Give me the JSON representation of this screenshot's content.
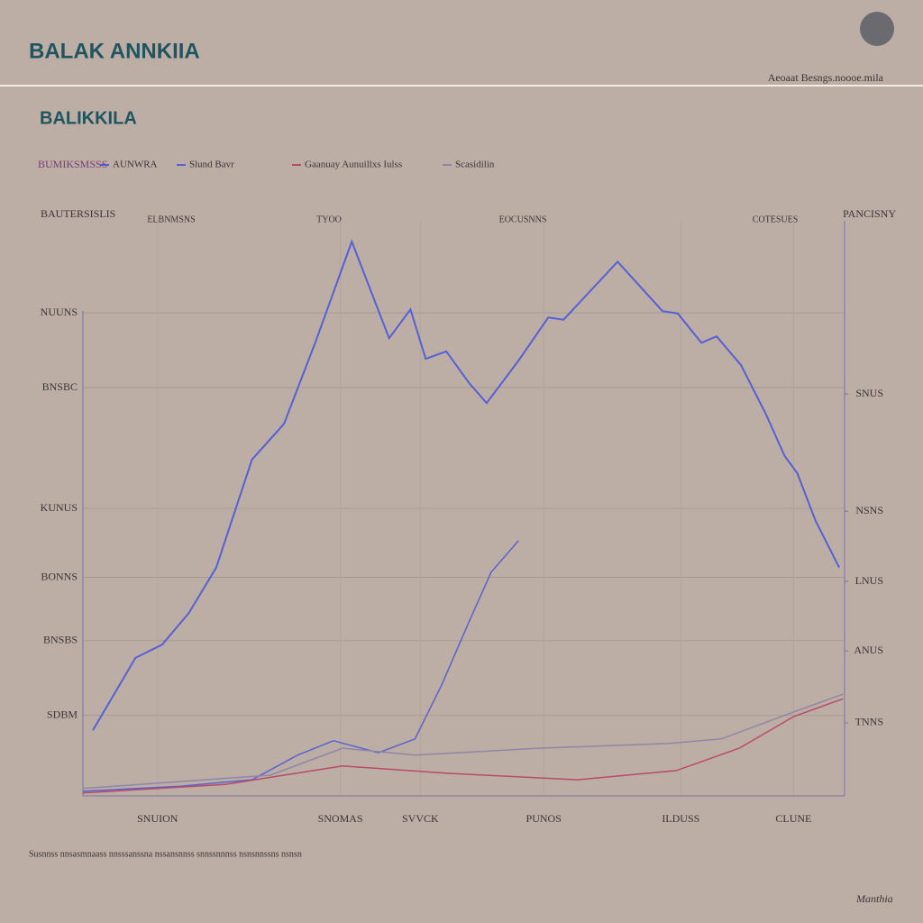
{
  "header": {
    "title": "BALAK ANNKIIA",
    "top_right": "Aeoaat Besngs.noooe.mila"
  },
  "chart_data": {
    "type": "line",
    "title": "BALIKKILA",
    "legend_title": "BUMIKSMSSS",
    "y_axis_label": "BAUTERSISLIS",
    "y2_axis_label": "PANCISNY",
    "column_labels": [
      "ELBNMSNS",
      "TYOO",
      "EOCUSNNS",
      "COTESUES"
    ],
    "xlim": [
      0,
      100
    ],
    "xticks": [
      {
        "value": 9.8,
        "label": "SNUION"
      },
      {
        "value": 33.8,
        "label": "SNOMAS"
      },
      {
        "value": 44.3,
        "label": "SVVCK"
      },
      {
        "value": 60.5,
        "label": "PUNOS"
      },
      {
        "value": 78.5,
        "label": "ILDUSS"
      },
      {
        "value": 93.3,
        "label": "CLUNE"
      }
    ],
    "ylim": [
      0,
      100
    ],
    "yticks": [
      {
        "value": 14,
        "label": "SDBM"
      },
      {
        "value": 27,
        "label": "BNSBS"
      },
      {
        "value": 38,
        "label": "BONNS"
      },
      {
        "value": 50,
        "label": "KUNUS"
      },
      {
        "value": 71,
        "label": "BNSBC"
      },
      {
        "value": 84,
        "label": "NUUNS"
      }
    ],
    "y2lim": [
      0,
      100
    ],
    "y2ticks": [
      {
        "value": 12.7,
        "label": "TNNS"
      },
      {
        "value": 25.2,
        "label": "ANUS"
      },
      {
        "value": 37.3,
        "label": "LNUS"
      },
      {
        "value": 49.5,
        "label": "NSNS"
      },
      {
        "value": 69.9,
        "label": "SNUS"
      }
    ],
    "grid": true,
    "series": [
      {
        "name": "AUNWRA",
        "color": "#5560d8",
        "x": [
          1.3,
          6.9,
          10.4,
          13.9,
          17.5,
          22.2,
          26.4,
          30.5,
          35.3,
          40.2,
          43.0,
          45.0,
          47.7,
          50.7,
          53.0,
          57.2,
          61.1,
          63.1,
          70.2,
          76.1,
          78.1,
          81.2,
          83.2,
          86.4,
          89.7,
          92.1,
          93.8,
          96.2,
          99.3
        ],
        "values": [
          11.4,
          24.0,
          26.3,
          31.8,
          39.7,
          58.5,
          64.7,
          78.8,
          96.4,
          79.6,
          84.6,
          76.0,
          77.3,
          71.8,
          68.3,
          75.7,
          83.2,
          82.8,
          92.9,
          84.3,
          83.9,
          78.8,
          79.9,
          74.9,
          66.3,
          59.2,
          56.1,
          47.8,
          39.7
        ]
      },
      {
        "name": "Slund Bavr",
        "color": "#5a62d0",
        "x": [
          0,
          12.8,
          22.2,
          28.2,
          32.9,
          38.8,
          43.6,
          47.1,
          50.7,
          53.6,
          57.2
        ],
        "values": [
          0.8,
          1.7,
          2.8,
          7.1,
          9.6,
          7.5,
          9.9,
          19.3,
          30.3,
          38.9,
          44.4
        ]
      },
      {
        "name": "Gaanuay Aunuillxs Iulss",
        "color": "#b84a6a",
        "x": [
          0,
          18.7,
          34.1,
          48.3,
          64.9,
          77.9,
          86.2,
          93.3,
          99.8
        ],
        "values": [
          0.5,
          2.0,
          5.2,
          3.9,
          2.8,
          4.4,
          8.3,
          13.8,
          16.9
        ]
      },
      {
        "name": "Scasidilin",
        "color": "#8f86a8",
        "x": [
          0,
          24.6,
          34.1,
          43.6,
          60.1,
          76.7,
          83.8,
          93.3,
          99.8
        ],
        "values": [
          1.3,
          3.6,
          8.3,
          7.1,
          8.3,
          9.1,
          9.9,
          14.6,
          17.7
        ]
      }
    ]
  },
  "footer": {
    "note": "Susnnss nnsasmnaass nnsssanssna nssansnnss snnssnnnss nsnsnnssns nsnsn",
    "signature": "Manthia"
  }
}
